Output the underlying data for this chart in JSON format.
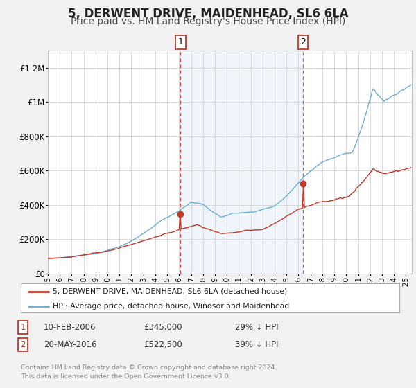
{
  "title": "5, DERWENT DRIVE, MAIDENHEAD, SL6 6LA",
  "subtitle": "Price paid vs. HM Land Registry's House Price Index (HPI)",
  "ylim": [
    0,
    1300000
  ],
  "yticks": [
    0,
    200000,
    400000,
    600000,
    800000,
    1000000,
    1200000
  ],
  "ytick_labels": [
    "£0",
    "£200K",
    "£400K",
    "£600K",
    "£800K",
    "£1M",
    "£1.2M"
  ],
  "xlim_start": 1995.0,
  "xlim_end": 2025.5,
  "xticks": [
    1995,
    1996,
    1997,
    1998,
    1999,
    2000,
    2001,
    2002,
    2003,
    2004,
    2005,
    2006,
    2007,
    2008,
    2009,
    2010,
    2011,
    2012,
    2013,
    2014,
    2015,
    2016,
    2017,
    2018,
    2019,
    2020,
    2021,
    2022,
    2023,
    2024,
    2025
  ],
  "hpi_color": "#6baed6",
  "price_color": "#c0392b",
  "sale1_date": 2006.12,
  "sale1_price": 345000,
  "sale2_date": 2016.38,
  "sale2_price": 522500,
  "shaded_start": 2006.12,
  "shaded_end": 2016.38,
  "legend_label_price": "5, DERWENT DRIVE, MAIDENHEAD, SL6 6LA (detached house)",
  "legend_label_hpi": "HPI: Average price, detached house, Windsor and Maidenhead",
  "annotation1": "10-FEB-2006",
  "annotation1_price": "£345,000",
  "annotation1_hpi": "29% ↓ HPI",
  "annotation2": "20-MAY-2016",
  "annotation2_price": "£522,500",
  "annotation2_hpi": "39% ↓ HPI",
  "footer1": "Contains HM Land Registry data © Crown copyright and database right 2024.",
  "footer2": "This data is licensed under the Open Government Licence v3.0.",
  "background_color": "#f2f2f2",
  "plot_bg_color": "#ffffff",
  "grid_color": "#cccccc",
  "title_fontsize": 12,
  "subtitle_fontsize": 10
}
